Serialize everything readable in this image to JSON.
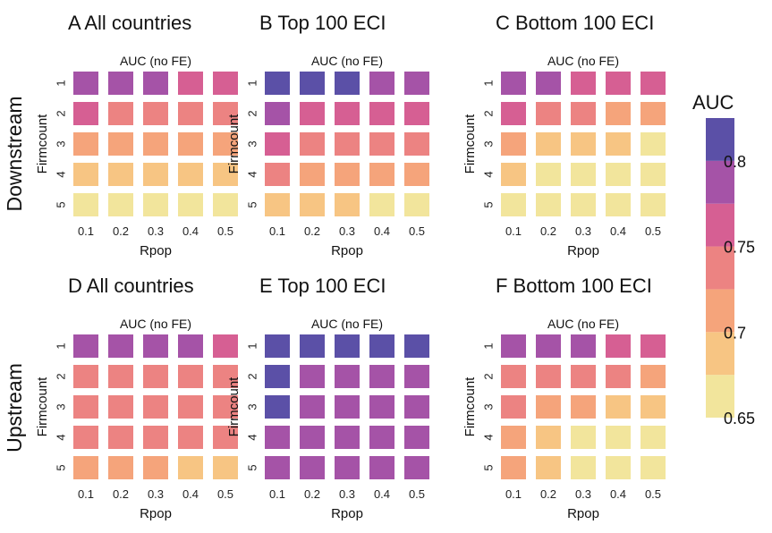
{
  "row_labels": [
    "Downstream",
    "Upstream"
  ],
  "colorbar": {
    "title": "AUC",
    "ticks": [
      "0.8",
      "0.75",
      "0.7",
      "0.65"
    ],
    "tick_values": [
      0.8,
      0.75,
      0.7,
      0.65
    ],
    "range": [
      0.65,
      0.825
    ],
    "bins": [
      {
        "min": 0.65,
        "max": 0.675,
        "color": "#f2e59c"
      },
      {
        "min": 0.675,
        "max": 0.7,
        "color": "#f7c583"
      },
      {
        "min": 0.7,
        "max": 0.725,
        "color": "#f5a47b"
      },
      {
        "min": 0.725,
        "max": 0.75,
        "color": "#ec8382"
      },
      {
        "min": 0.75,
        "max": 0.775,
        "color": "#d65f93"
      },
      {
        "min": 0.775,
        "max": 0.8,
        "color": "#a553a7"
      },
      {
        "min": 0.8,
        "max": 0.825,
        "color": "#5b50a7"
      }
    ]
  },
  "chart_data": [
    {
      "type": "heatmap",
      "title": "A All countries",
      "subtitle": "AUC (no FE)",
      "xlabel": "Rpop",
      "ylabel": "Firmcount",
      "x": [
        "0.1",
        "0.2",
        "0.3",
        "0.4",
        "0.5"
      ],
      "y": [
        "1",
        "2",
        "3",
        "4",
        "5"
      ],
      "values": [
        [
          0.785,
          0.785,
          0.785,
          0.77,
          0.765
        ],
        [
          0.765,
          0.74,
          0.74,
          0.74,
          0.74
        ],
        [
          0.715,
          0.715,
          0.715,
          0.715,
          0.715
        ],
        [
          0.69,
          0.69,
          0.69,
          0.69,
          0.69
        ],
        [
          0.665,
          0.665,
          0.665,
          0.665,
          0.665
        ]
      ]
    },
    {
      "type": "heatmap",
      "title": "B Top 100 ECI",
      "subtitle": "AUC (no FE)",
      "xlabel": "Rpop",
      "ylabel": "Firmcount",
      "x": [
        "0.1",
        "0.2",
        "0.3",
        "0.4",
        "0.5"
      ],
      "y": [
        "1",
        "2",
        "3",
        "4",
        "5"
      ],
      "values": [
        [
          0.81,
          0.81,
          0.81,
          0.785,
          0.785
        ],
        [
          0.785,
          0.765,
          0.765,
          0.765,
          0.765
        ],
        [
          0.765,
          0.74,
          0.74,
          0.74,
          0.74
        ],
        [
          0.74,
          0.715,
          0.715,
          0.715,
          0.715
        ],
        [
          0.69,
          0.69,
          0.69,
          0.665,
          0.665
        ]
      ]
    },
    {
      "type": "heatmap",
      "title": "C Bottom 100 ECI",
      "subtitle": "AUC (no FE)",
      "xlabel": "Rpop",
      "ylabel": "Firmcount",
      "x": [
        "0.1",
        "0.2",
        "0.3",
        "0.4",
        "0.5"
      ],
      "y": [
        "1",
        "2",
        "3",
        "4",
        "5"
      ],
      "values": [
        [
          0.785,
          0.785,
          0.765,
          0.765,
          0.765
        ],
        [
          0.765,
          0.74,
          0.74,
          0.715,
          0.715
        ],
        [
          0.715,
          0.69,
          0.69,
          0.69,
          0.665
        ],
        [
          0.69,
          0.665,
          0.665,
          0.665,
          0.665
        ],
        [
          0.665,
          0.665,
          0.665,
          0.665,
          0.665
        ]
      ]
    },
    {
      "type": "heatmap",
      "title": "D All countries",
      "subtitle": "AUC (no FE)",
      "xlabel": "Rpop",
      "ylabel": "Firmcount",
      "x": [
        "0.1",
        "0.2",
        "0.3",
        "0.4",
        "0.5"
      ],
      "y": [
        "1",
        "2",
        "3",
        "4",
        "5"
      ],
      "values": [
        [
          0.785,
          0.785,
          0.785,
          0.785,
          0.765
        ],
        [
          0.74,
          0.74,
          0.74,
          0.74,
          0.74
        ],
        [
          0.74,
          0.74,
          0.74,
          0.74,
          0.74
        ],
        [
          0.74,
          0.74,
          0.74,
          0.74,
          0.74
        ],
        [
          0.715,
          0.715,
          0.715,
          0.69,
          0.69
        ]
      ]
    },
    {
      "type": "heatmap",
      "title": "E Top 100 ECI",
      "subtitle": "AUC (no FE)",
      "xlabel": "Rpop",
      "ylabel": "Firmcount",
      "x": [
        "0.1",
        "0.2",
        "0.3",
        "0.4",
        "0.5"
      ],
      "y": [
        "1",
        "2",
        "3",
        "4",
        "5"
      ],
      "values": [
        [
          0.81,
          0.81,
          0.81,
          0.81,
          0.81
        ],
        [
          0.81,
          0.785,
          0.785,
          0.785,
          0.785
        ],
        [
          0.81,
          0.785,
          0.785,
          0.785,
          0.785
        ],
        [
          0.785,
          0.785,
          0.785,
          0.785,
          0.785
        ],
        [
          0.785,
          0.785,
          0.785,
          0.785,
          0.785
        ]
      ]
    },
    {
      "type": "heatmap",
      "title": "F Bottom 100 ECI",
      "subtitle": "AUC (no FE)",
      "xlabel": "Rpop",
      "ylabel": "Firmcount",
      "x": [
        "0.1",
        "0.2",
        "0.3",
        "0.4",
        "0.5"
      ],
      "y": [
        "1",
        "2",
        "3",
        "4",
        "5"
      ],
      "values": [
        [
          0.785,
          0.785,
          0.785,
          0.765,
          0.765
        ],
        [
          0.74,
          0.74,
          0.74,
          0.74,
          0.715
        ],
        [
          0.74,
          0.715,
          0.715,
          0.69,
          0.69
        ],
        [
          0.715,
          0.69,
          0.665,
          0.665,
          0.665
        ],
        [
          0.715,
          0.69,
          0.665,
          0.665,
          0.665
        ]
      ]
    }
  ]
}
